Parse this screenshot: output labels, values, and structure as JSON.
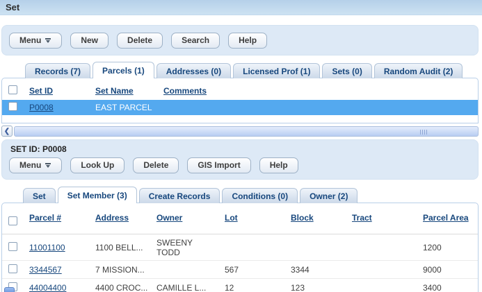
{
  "page": {
    "title": "Set"
  },
  "colors": {
    "titlebar_blue": "#bdd7ee",
    "panel_blue": "#dde9f6",
    "selected_row_blue": "#54a9ef",
    "link_navy": "#17477d",
    "tab_inactive": "#ccd9e9",
    "scrollbar_track": "#b8cdf2"
  },
  "set_list": {
    "toolbar": {
      "menu_label": "Menu",
      "buttons": [
        "New",
        "Delete",
        "Search",
        "Help"
      ]
    },
    "tabs": [
      {
        "label": "Records (7)",
        "active": false
      },
      {
        "label": "Parcels (1)",
        "active": true
      },
      {
        "label": "Addresses (0)",
        "active": false
      },
      {
        "label": "Licensed Prof (1)",
        "active": false
      },
      {
        "label": "Sets (0)",
        "active": false
      },
      {
        "label": "Random Audit (2)",
        "active": false
      }
    ],
    "table": {
      "columns": [
        "Set ID",
        "Set Name",
        "Comments"
      ],
      "rows": [
        {
          "set_id": "P0008",
          "set_name": "EAST PARCEL",
          "comments": ""
        }
      ]
    }
  },
  "set_detail": {
    "header": "SET ID: P0008",
    "toolbar": {
      "menu_label": "Menu",
      "buttons": [
        "Look Up",
        "Delete",
        "GIS Import",
        "Help"
      ]
    },
    "tabs": [
      {
        "label": "Set",
        "active": false
      },
      {
        "label": "Set Member (3)",
        "active": true
      },
      {
        "label": "Create Records",
        "active": false
      },
      {
        "label": "Conditions (0)",
        "active": false
      },
      {
        "label": "Owner (2)",
        "active": false
      }
    ],
    "table": {
      "columns": [
        "Parcel #",
        "Address",
        "Owner",
        "Lot",
        "Block",
        "Tract",
        "Parcel Area"
      ],
      "rows": [
        {
          "parcel": "11001100",
          "address": "1100 BELL...",
          "owner": "SWEENY\nTODD",
          "lot": "",
          "block": "",
          "tract": "",
          "area": "1200"
        },
        {
          "parcel": "3344567",
          "address": "7 MISSION...",
          "owner": "",
          "lot": "567",
          "block": "3344",
          "tract": "",
          "area": "9000"
        },
        {
          "parcel": "44004400",
          "address": "4400 CROC...",
          "owner": "CAMILLE L...",
          "lot": "12",
          "block": "123",
          "tract": "",
          "area": "3400"
        }
      ]
    }
  }
}
